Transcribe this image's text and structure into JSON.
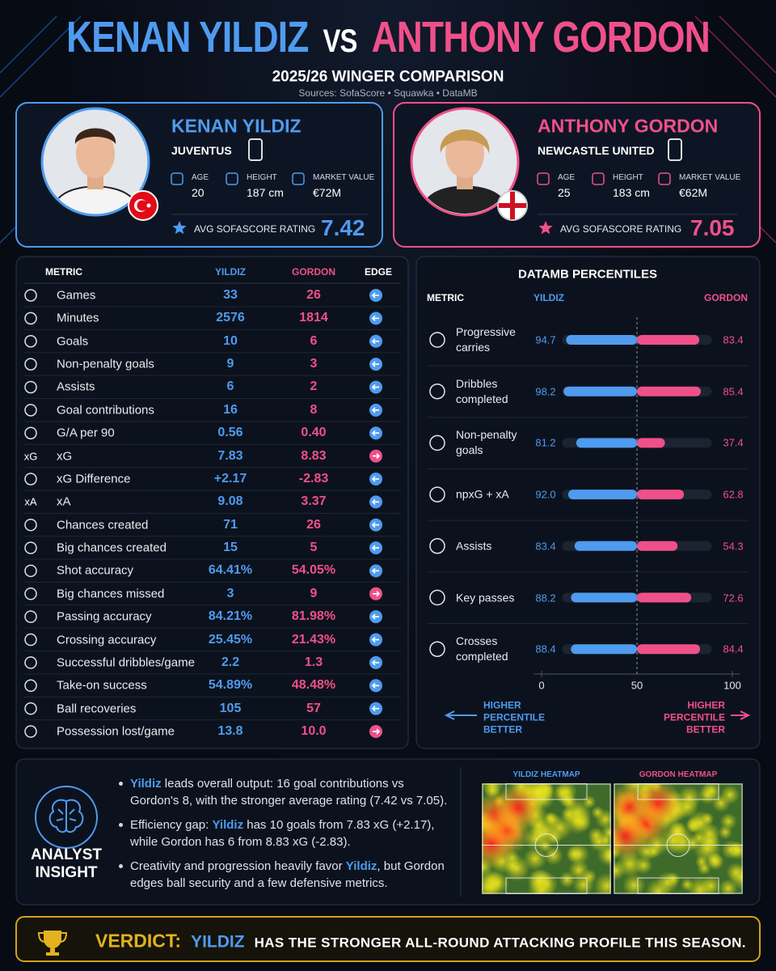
{
  "header": {
    "title_left": "KENAN YILDIZ",
    "title_vs": "VS",
    "title_right": "ANTHONY GORDON",
    "subtitle": "2025/26 WINGER COMPARISON",
    "sources": "Sources: SofaScore • Squawka • DataMB"
  },
  "players": [
    {
      "name": "KENAN YILDIZ",
      "club": "JUVENTUS",
      "age_label": "AGE",
      "age": "20",
      "height_label": "HEIGHT",
      "height": "187 cm",
      "market_value_label": "MARKET VALUE",
      "market_value": "€72M",
      "rating_label": "AVG SOFASCORE RATING",
      "rating": "7.42"
    },
    {
      "name": "ANTHONY GORDON",
      "club": "NEWCASTLE UNITED",
      "age_label": "AGE",
      "age": "25",
      "height_label": "HEIGHT",
      "height": "183 cm",
      "market_value_label": "MARKET VALUE",
      "market_value": "€62M",
      "rating_label": "AVG SOFASCORE RATING",
      "rating": "7.05"
    }
  ],
  "stats_table": {
    "columns": [
      "METRIC",
      "YILDIZ",
      "GORDON",
      "EDGE"
    ],
    "rows": [
      {
        "metric": "Games",
        "yildiz": "33",
        "gordon": "26",
        "edge": "left"
      },
      {
        "metric": "Minutes",
        "yildiz": "2576",
        "gordon": "1814",
        "edge": "left"
      },
      {
        "metric": "Goals",
        "yildiz": "10",
        "gordon": "6",
        "edge": "left"
      },
      {
        "metric": "Non-penalty goals",
        "yildiz": "9",
        "gordon": "3",
        "edge": "left"
      },
      {
        "metric": "Assists",
        "yildiz": "6",
        "gordon": "2",
        "edge": "left"
      },
      {
        "metric": "Goal contributions",
        "yildiz": "16",
        "gordon": "8",
        "edge": "left"
      },
      {
        "metric": "G/A per 90",
        "yildiz": "0.56",
        "gordon": "0.40",
        "edge": "left"
      },
      {
        "metric": "xG",
        "icon_label": "xG",
        "yildiz": "7.83",
        "gordon": "8.83",
        "edge": "right"
      },
      {
        "metric": "xG Difference",
        "yildiz": "+2.17",
        "gordon": "-2.83",
        "edge": "left"
      },
      {
        "metric": "xA",
        "icon_label": "xA",
        "yildiz": "9.08",
        "gordon": "3.37",
        "edge": "left"
      },
      {
        "metric": "Chances created",
        "yildiz": "71",
        "gordon": "26",
        "edge": "left"
      },
      {
        "metric": "Big chances created",
        "yildiz": "15",
        "gordon": "5",
        "edge": "left"
      },
      {
        "metric": "Shot accuracy",
        "yildiz": "64.41%",
        "gordon": "54.05%",
        "edge": "left"
      },
      {
        "metric": "Big chances missed",
        "yildiz": "3",
        "gordon": "9",
        "edge": "right"
      },
      {
        "metric": "Passing accuracy",
        "yildiz": "84.21%",
        "gordon": "81.98%",
        "edge": "left"
      },
      {
        "metric": "Crossing accuracy",
        "yildiz": "25.45%",
        "gordon": "21.43%",
        "edge": "left"
      },
      {
        "metric": "Successful dribbles/game",
        "yildiz": "2.2",
        "gordon": "1.3",
        "edge": "left"
      },
      {
        "metric": "Take-on success",
        "yildiz": "54.89%",
        "gordon": "48.48%",
        "edge": "left"
      },
      {
        "metric": "Ball recoveries",
        "yildiz": "105",
        "gordon": "57",
        "edge": "left"
      },
      {
        "metric": "Possession lost/game",
        "yildiz": "13.8",
        "gordon": "10.0",
        "edge": "right"
      }
    ]
  },
  "chart_data": {
    "type": "bar",
    "title": "DATAMB PERCENTILES",
    "metric_header": "METRIC",
    "categories": [
      "Progressive carries",
      "Dribbles completed",
      "Non-penalty goals",
      "npxG + xA",
      "Assists",
      "Key passes",
      "Crosses completed"
    ],
    "series": [
      {
        "name": "YILDIZ",
        "color": "#4f9bef",
        "values": [
          94.7,
          98.2,
          81.2,
          92.0,
          83.4,
          88.2,
          88.4
        ],
        "value_labels": [
          "94.7",
          "98.2",
          "81.2",
          "92.0",
          "83.4",
          "88.2",
          "88.4"
        ]
      },
      {
        "name": "GORDON",
        "color": "#f0508a",
        "values": [
          83.4,
          85.4,
          37.4,
          62.8,
          54.3,
          72.6,
          84.4
        ],
        "value_labels": [
          "83.4",
          "85.4",
          "37.4",
          "62.8",
          "54.3",
          "72.6",
          "84.4"
        ]
      }
    ],
    "xlim": [
      0,
      100
    ],
    "xticks": [
      0,
      50,
      100
    ],
    "footer_left": "HIGHER PERCENTILE BETTER",
    "footer_right": "HIGHER PERCENTILE BETTER"
  },
  "insight": {
    "label": "ANALYST INSIGHT",
    "bullets": [
      [
        {
          "text": "Yildiz",
          "highlight": true
        },
        {
          "text": " leads overall output: 16 goal contributions vs Gordon's 8, with the stronger average rating (7.42 vs 7.05).",
          "highlight": false
        }
      ],
      [
        {
          "text": "Efficiency gap: ",
          "highlight": false
        },
        {
          "text": "Yildiz",
          "highlight": true
        },
        {
          "text": " has 10 goals from 7.83 xG (+2.17), while Gordon has 6 from 8.83 xG (-2.83).",
          "highlight": false
        }
      ],
      [
        {
          "text": "Creativity and progression heavily favor ",
          "highlight": false
        },
        {
          "text": "Yildiz",
          "highlight": true
        },
        {
          "text": ", but Gordon edges ball security and a few defensive metrics.",
          "highlight": false
        }
      ]
    ]
  },
  "heatmaps": [
    {
      "title": "YILDIZ HEATMAP"
    },
    {
      "title": "GORDON HEATMAP"
    }
  ],
  "verdict": {
    "label": "VERDICT:",
    "player": "YILDIZ",
    "text": "HAS THE STRONGER ALL-ROUND ATTACKING PROFILE THIS SEASON."
  }
}
